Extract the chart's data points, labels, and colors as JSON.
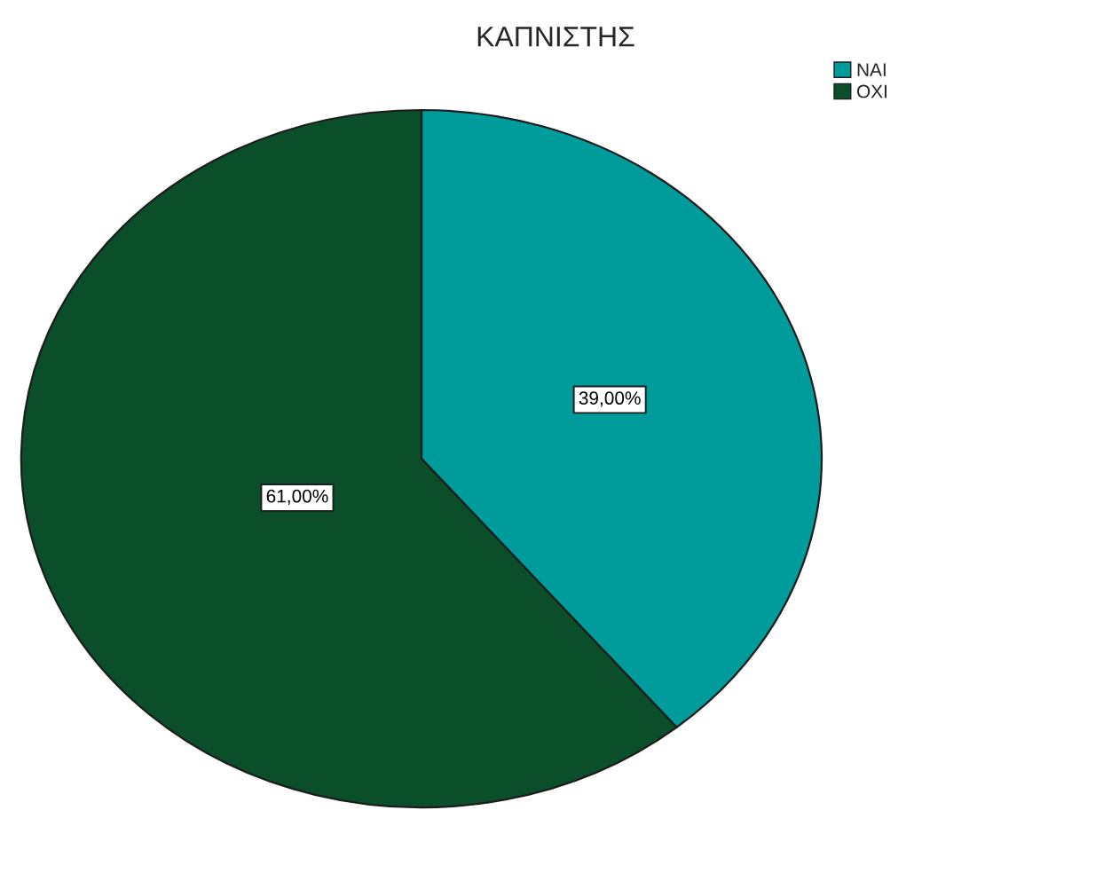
{
  "chart_data": {
    "type": "pie",
    "title": "ΚΑΠΝΙΣΤΗΣ",
    "categories": [
      "ΝΑΙ",
      "ΟΧΙ"
    ],
    "values": [
      39,
      61
    ],
    "colors": [
      "#009c9c",
      "#0b4f2a"
    ],
    "value_labels": [
      "39,00%",
      "61,00%"
    ],
    "legend": "top right"
  }
}
